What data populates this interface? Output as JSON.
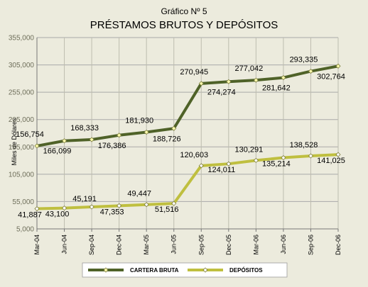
{
  "chart_data": {
    "type": "line",
    "title": "Gráfico Nº 5",
    "subtitle": "PRÉSTAMOS BRUTOS Y DEPÓSITOS",
    "ylabel": "Miles de Dólares",
    "xlabel": "",
    "ylim": [
      5000,
      355000
    ],
    "yticks": [
      5000,
      55000,
      105000,
      155000,
      205000,
      255000,
      305000,
      355000
    ],
    "ytick_labels": [
      "5,000",
      "55,000",
      "105,000",
      "155,000",
      "205,000",
      "255,000",
      "305,000",
      "355,000"
    ],
    "grid": true,
    "legend_position": "bottom",
    "categories": [
      "Mar-04",
      "Jun-04",
      "Sep-04",
      "Dec-04",
      "Mar-05",
      "Jun-05",
      "Sep-05",
      "Dec-05",
      "Mar-06",
      "Jun-06",
      "Sep-06",
      "Dec-06"
    ],
    "series": [
      {
        "name": "CARTERA BRUTA",
        "color": "#4F6228",
        "marker_color": "#FFFFB0",
        "values": [
          156754,
          166099,
          168333,
          176386,
          181930,
          188726,
          270945,
          274274,
          277042,
          281642,
          293335,
          302764
        ],
        "labels": [
          "156,754",
          "166,099",
          "168,333",
          "176,386",
          "181,930",
          "188,726",
          "270,945",
          "274,274",
          "277,042",
          "281,642",
          "293,335",
          "302,764"
        ]
      },
      {
        "name": "DEPÓSITOS",
        "color": "#BFBF3F",
        "marker_color": "#FFFFFF",
        "values": [
          41887,
          43100,
          45191,
          47353,
          49447,
          51516,
          120603,
          124011,
          130291,
          135214,
          138528,
          141025
        ],
        "labels": [
          "41,887",
          "43,100",
          "45,191",
          "47,353",
          "49,447",
          "51,516",
          "120,603",
          "124,011",
          "130,291",
          "135,214",
          "138,528",
          "141,025"
        ]
      }
    ]
  }
}
